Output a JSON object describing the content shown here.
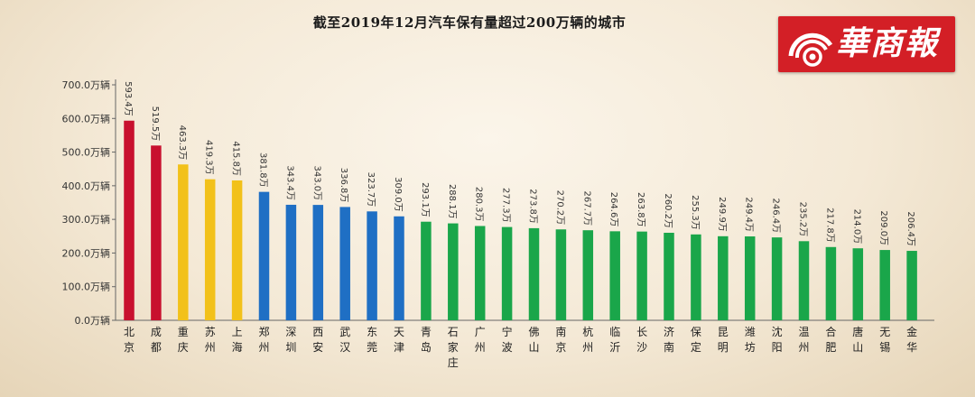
{
  "chart_data": {
    "type": "bar",
    "title": "截至2019年12月汽车保有量超过200万辆的城市",
    "categories": [
      "北京",
      "成都",
      "重庆",
      "苏州",
      "上海",
      "郑州",
      "深圳",
      "西安",
      "武汉",
      "东莞",
      "天津",
      "青岛",
      "石家庄",
      "广州",
      "宁波",
      "佛山",
      "南京",
      "杭州",
      "临沂",
      "长沙",
      "济南",
      "保定",
      "昆明",
      "潍坊",
      "沈阳",
      "温州",
      "合肥",
      "唐山",
      "无锡",
      "金华"
    ],
    "values": [
      593.4,
      519.5,
      463.3,
      419.3,
      415.8,
      381.8,
      343.4,
      343.0,
      336.8,
      323.7,
      309.0,
      293.1,
      288.1,
      280.3,
      277.3,
      273.8,
      270.2,
      267.7,
      264.6,
      263.8,
      260.2,
      255.3,
      249.9,
      249.4,
      246.4,
      235.2,
      217.8,
      214.0,
      209.0,
      206.4
    ],
    "value_labels": [
      "593.4万",
      "519.5万",
      "463.3万",
      "419.3万",
      "415.8万",
      "381.8万",
      "343.4万",
      "343.0万",
      "336.8万",
      "323.7万",
      "309.0万",
      "293.1万",
      "288.1万",
      "280.3万",
      "277.3万",
      "273.8万",
      "270.2万",
      "267.7万",
      "264.6万",
      "263.8万",
      "260.2万",
      "255.3万",
      "249.9万",
      "249.4万",
      "246.4万",
      "235.2万",
      "217.8万",
      "214.0万",
      "209.0万",
      "206.4万"
    ],
    "colors": [
      "#c8102e",
      "#c8102e",
      "#f2c11a",
      "#f2c11a",
      "#f2c11a",
      "#1f6fc4",
      "#1f6fc4",
      "#1f6fc4",
      "#1f6fc4",
      "#1f6fc4",
      "#1f6fc4",
      "#1aa64a",
      "#1aa64a",
      "#1aa64a",
      "#1aa64a",
      "#1aa64a",
      "#1aa64a",
      "#1aa64a",
      "#1aa64a",
      "#1aa64a",
      "#1aa64a",
      "#1aa64a",
      "#1aa64a",
      "#1aa64a",
      "#1aa64a",
      "#1aa64a",
      "#1aa64a",
      "#1aa64a",
      "#1aa64a",
      "#1aa64a"
    ],
    "yticks": [
      "0.0万辆",
      "100.0万辆",
      "200.0万辆",
      "300.0万辆",
      "400.0万辆",
      "500.0万辆",
      "600.0万辆",
      "700.0万辆"
    ],
    "ylim": [
      0,
      700
    ],
    "grid": false,
    "legend": "none"
  },
  "logo": {
    "text": "華商報",
    "background": "#d31f26"
  }
}
